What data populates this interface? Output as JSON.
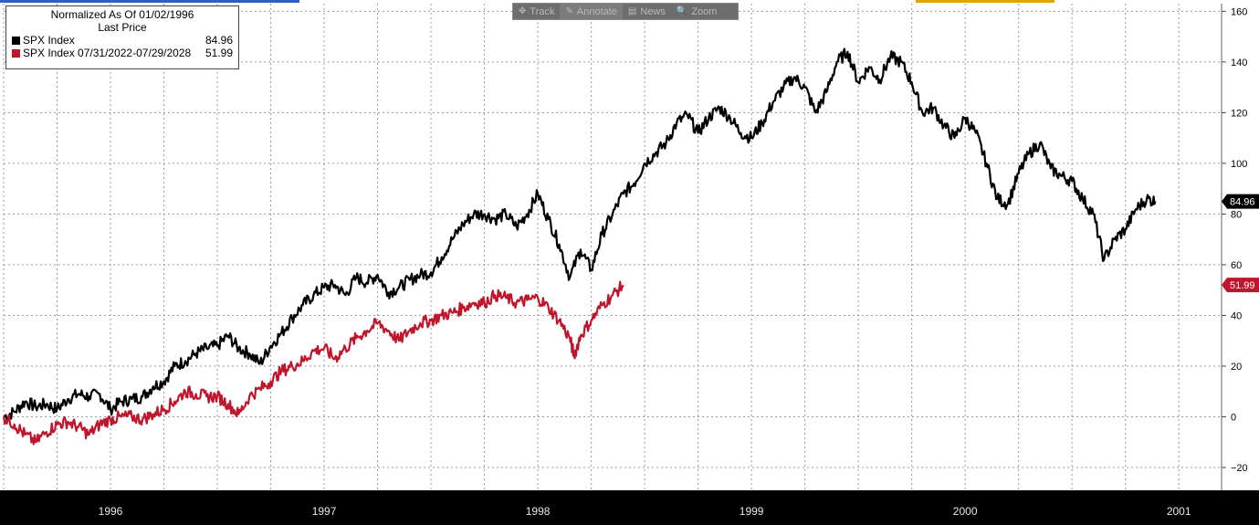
{
  "legend": {
    "title_line1": "Normalized As Of 01/02/1996",
    "title_line2": "Last Price",
    "series": [
      {
        "label": "SPX Index",
        "value": "84.96",
        "color": "#000000"
      },
      {
        "label": "SPX Index 07/31/2022-07/29/2028",
        "value": "51.99",
        "color": "#c0162c"
      }
    ]
  },
  "toolbar": {
    "items": [
      {
        "label": "Track",
        "icon": "crosshair-icon"
      },
      {
        "label": "Annotate",
        "icon": "pencil-icon"
      },
      {
        "label": "News",
        "icon": "news-icon"
      },
      {
        "label": "Zoom",
        "icon": "magnifier-icon"
      }
    ]
  },
  "chart_data": {
    "type": "line",
    "title": "",
    "x_tick_labels": [
      "1996",
      "1997",
      "1998",
      "1999",
      "2000",
      "2001"
    ],
    "xlim": [
      1996.0,
      2001.7
    ],
    "ylim": [
      -29,
      163
    ],
    "y_ticks": [
      -20,
      0,
      20,
      40,
      60,
      80,
      100,
      120,
      140,
      160
    ],
    "grid": true,
    "legend_position": "top-left",
    "last_value_labels": [
      "84.96",
      "51.99"
    ],
    "series": [
      {
        "name": "SPX Index",
        "color": "#000000",
        "points": [
          [
            1996.0,
            0
          ],
          [
            1996.05,
            2
          ],
          [
            1996.1,
            6
          ],
          [
            1996.15,
            4
          ],
          [
            1996.2,
            5
          ],
          [
            1996.25,
            3
          ],
          [
            1996.3,
            7
          ],
          [
            1996.35,
            9
          ],
          [
            1996.4,
            8
          ],
          [
            1996.45,
            9
          ],
          [
            1996.5,
            3
          ],
          [
            1996.55,
            6
          ],
          [
            1996.6,
            7
          ],
          [
            1996.65,
            8
          ],
          [
            1996.7,
            12
          ],
          [
            1996.75,
            14
          ],
          [
            1996.8,
            20
          ],
          [
            1996.85,
            22
          ],
          [
            1996.9,
            25
          ],
          [
            1996.95,
            27
          ],
          [
            1997.0,
            28
          ],
          [
            1997.05,
            32
          ],
          [
            1997.1,
            27
          ],
          [
            1997.15,
            25
          ],
          [
            1997.2,
            21
          ],
          [
            1997.25,
            28
          ],
          [
            1997.3,
            33
          ],
          [
            1997.35,
            39
          ],
          [
            1997.4,
            44
          ],
          [
            1997.45,
            48
          ],
          [
            1997.5,
            51
          ],
          [
            1997.55,
            52
          ],
          [
            1997.6,
            48
          ],
          [
            1997.65,
            55
          ],
          [
            1997.7,
            53
          ],
          [
            1997.75,
            56
          ],
          [
            1997.8,
            49
          ],
          [
            1997.85,
            51
          ],
          [
            1997.9,
            54
          ],
          [
            1997.95,
            56
          ],
          [
            1998.0,
            57
          ],
          [
            1998.05,
            63
          ],
          [
            1998.1,
            70
          ],
          [
            1998.15,
            76
          ],
          [
            1998.2,
            80
          ],
          [
            1998.25,
            80
          ],
          [
            1998.3,
            78
          ],
          [
            1998.35,
            80
          ],
          [
            1998.4,
            75
          ],
          [
            1998.45,
            80
          ],
          [
            1998.5,
            88
          ],
          [
            1998.55,
            78
          ],
          [
            1998.6,
            68
          ],
          [
            1998.65,
            55
          ],
          [
            1998.7,
            66
          ],
          [
            1998.75,
            58
          ],
          [
            1998.8,
            72
          ],
          [
            1998.85,
            80
          ],
          [
            1998.9,
            88
          ],
          [
            1998.95,
            92
          ],
          [
            1999.0,
            100
          ],
          [
            1999.05,
            104
          ],
          [
            1999.1,
            108
          ],
          [
            1999.15,
            116
          ],
          [
            1999.2,
            119
          ],
          [
            1999.25,
            112
          ],
          [
            1999.3,
            118
          ],
          [
            1999.35,
            122
          ],
          [
            1999.4,
            118
          ],
          [
            1999.45,
            112
          ],
          [
            1999.5,
            110
          ],
          [
            1999.55,
            116
          ],
          [
            1999.6,
            124
          ],
          [
            1999.65,
            130
          ],
          [
            1999.7,
            134
          ],
          [
            1999.75,
            130
          ],
          [
            1999.8,
            120
          ],
          [
            1999.85,
            128
          ],
          [
            1999.9,
            140
          ],
          [
            1999.95,
            144
          ],
          [
            2000.0,
            132
          ],
          [
            2000.05,
            138
          ],
          [
            2000.1,
            133
          ],
          [
            2000.15,
            142
          ],
          [
            2000.2,
            140
          ],
          [
            2000.25,
            132
          ],
          [
            2000.3,
            120
          ],
          [
            2000.35,
            122
          ],
          [
            2000.4,
            115
          ],
          [
            2000.45,
            110
          ],
          [
            2000.5,
            118
          ],
          [
            2000.55,
            112
          ],
          [
            2000.6,
            100
          ],
          [
            2000.65,
            86
          ],
          [
            2000.7,
            84
          ],
          [
            2000.75,
            96
          ],
          [
            2000.8,
            104
          ],
          [
            2000.85,
            108
          ],
          [
            2000.9,
            98
          ],
          [
            2000.95,
            95
          ],
          [
            2001.0,
            93
          ],
          [
            2001.05,
            86
          ],
          [
            2001.1,
            80
          ],
          [
            2001.15,
            62
          ],
          [
            2001.2,
            70
          ],
          [
            2001.25,
            74
          ],
          [
            2001.3,
            82
          ],
          [
            2001.35,
            86
          ],
          [
            2001.39,
            84.96
          ]
        ]
      },
      {
        "name": "SPX Index 07/31/2022-07/29/2028",
        "color": "#c0162c",
        "points": [
          [
            1996.0,
            0
          ],
          [
            1996.05,
            -3
          ],
          [
            1996.1,
            -7
          ],
          [
            1996.15,
            -10
          ],
          [
            1996.2,
            -6
          ],
          [
            1996.25,
            -3
          ],
          [
            1996.3,
            -2
          ],
          [
            1996.35,
            -4
          ],
          [
            1996.4,
            -7
          ],
          [
            1996.45,
            -3
          ],
          [
            1996.5,
            -1
          ],
          [
            1996.55,
            0
          ],
          [
            1996.6,
            0
          ],
          [
            1996.65,
            -1
          ],
          [
            1996.7,
            1
          ],
          [
            1996.75,
            3
          ],
          [
            1996.8,
            6
          ],
          [
            1996.85,
            10
          ],
          [
            1996.9,
            9
          ],
          [
            1996.95,
            8
          ],
          [
            1997.0,
            8
          ],
          [
            1997.05,
            5
          ],
          [
            1997.1,
            1
          ],
          [
            1997.15,
            8
          ],
          [
            1997.2,
            11
          ],
          [
            1997.25,
            14
          ],
          [
            1997.3,
            18
          ],
          [
            1997.35,
            20
          ],
          [
            1997.4,
            22
          ],
          [
            1997.45,
            26
          ],
          [
            1997.5,
            27
          ],
          [
            1997.55,
            23
          ],
          [
            1997.6,
            27
          ],
          [
            1997.65,
            31
          ],
          [
            1997.7,
            34
          ],
          [
            1997.75,
            37
          ],
          [
            1997.8,
            34
          ],
          [
            1997.85,
            30
          ],
          [
            1997.9,
            34
          ],
          [
            1997.95,
            37
          ],
          [
            1998.0,
            38
          ],
          [
            1998.05,
            40
          ],
          [
            1998.1,
            41
          ],
          [
            1998.15,
            43
          ],
          [
            1998.2,
            45
          ],
          [
            1998.25,
            45
          ],
          [
            1998.3,
            48
          ],
          [
            1998.35,
            47
          ],
          [
            1998.4,
            45
          ],
          [
            1998.45,
            46
          ],
          [
            1998.5,
            47
          ],
          [
            1998.55,
            43
          ],
          [
            1998.6,
            38
          ],
          [
            1998.65,
            31
          ],
          [
            1998.67,
            24
          ],
          [
            1998.7,
            32
          ],
          [
            1998.75,
            38
          ],
          [
            1998.8,
            44
          ],
          [
            1998.85,
            48
          ],
          [
            1998.9,
            51.99
          ]
        ]
      }
    ]
  }
}
